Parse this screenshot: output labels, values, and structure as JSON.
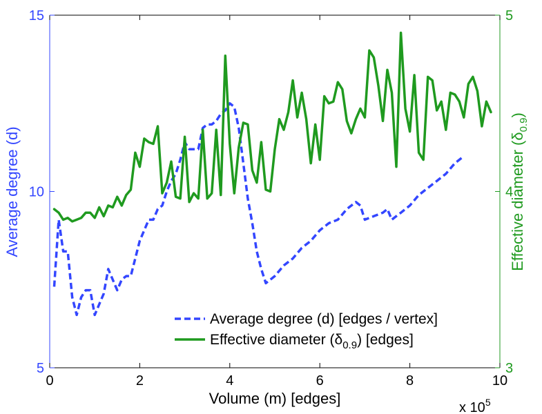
{
  "chart_data": {
    "type": "line",
    "xlabel": "Volume (m) [edges]",
    "x_multiplier_label": "x 10",
    "x_multiplier_exp": "5",
    "xlim": [
      0,
      10
    ],
    "x_ticks": [
      "0",
      "2",
      "4",
      "6",
      "8",
      "10"
    ],
    "y_left": {
      "label": "Average degree (d)",
      "lim": [
        5,
        15
      ],
      "ticks": [
        "5",
        "10",
        "15"
      ],
      "color": "#3346ff"
    },
    "y_right": {
      "label_main": "Effective diameter (δ",
      "label_sub": "0.9",
      "label_end": ")",
      "lim": [
        3,
        5
      ],
      "ticks": [
        "3",
        "4",
        "5"
      ],
      "color": "#1f9a1f"
    },
    "legend_position": "lower-right",
    "grid": false,
    "series": [
      {
        "name": "Average degree (d) [edges / vertex]",
        "axis": "left",
        "style": "dashed",
        "color": "#3346ff",
        "points": [
          [
            0.1,
            7.3
          ],
          [
            0.2,
            9.2
          ],
          [
            0.3,
            8.3
          ],
          [
            0.4,
            8.3
          ],
          [
            0.5,
            7.0
          ],
          [
            0.6,
            6.5
          ],
          [
            0.7,
            7.0
          ],
          [
            0.8,
            7.2
          ],
          [
            0.9,
            7.2
          ],
          [
            1.0,
            6.5
          ],
          [
            1.1,
            6.8
          ],
          [
            1.2,
            7.1
          ],
          [
            1.3,
            7.8
          ],
          [
            1.4,
            7.5
          ],
          [
            1.5,
            7.2
          ],
          [
            1.6,
            7.5
          ],
          [
            1.7,
            7.6
          ],
          [
            1.8,
            7.6
          ],
          [
            1.9,
            8.1
          ],
          [
            2.0,
            8.6
          ],
          [
            2.1,
            8.9
          ],
          [
            2.2,
            9.2
          ],
          [
            2.3,
            9.2
          ],
          [
            2.4,
            9.5
          ],
          [
            2.5,
            9.6
          ],
          [
            2.6,
            10.0
          ],
          [
            2.7,
            10.3
          ],
          [
            2.8,
            10.5
          ],
          [
            2.9,
            10.9
          ],
          [
            3.0,
            11.4
          ],
          [
            3.1,
            11.2
          ],
          [
            3.2,
            11.2
          ],
          [
            3.3,
            11.2
          ],
          [
            3.4,
            11.8
          ],
          [
            3.5,
            11.9
          ],
          [
            3.6,
            11.9
          ],
          [
            3.7,
            12.0
          ],
          [
            3.8,
            12.2
          ],
          [
            3.9,
            12.3
          ],
          [
            4.0,
            12.5
          ],
          [
            4.1,
            12.4
          ],
          [
            4.2,
            11.8
          ],
          [
            4.3,
            10.8
          ],
          [
            4.4,
            9.8
          ],
          [
            4.5,
            9.1
          ],
          [
            4.6,
            8.3
          ],
          [
            4.7,
            7.8
          ],
          [
            4.8,
            7.4
          ],
          [
            4.9,
            7.5
          ],
          [
            5.0,
            7.6
          ],
          [
            5.2,
            7.9
          ],
          [
            5.4,
            8.1
          ],
          [
            5.6,
            8.4
          ],
          [
            5.8,
            8.6
          ],
          [
            6.0,
            8.9
          ],
          [
            6.2,
            9.1
          ],
          [
            6.4,
            9.2
          ],
          [
            6.6,
            9.5
          ],
          [
            6.8,
            9.7
          ],
          [
            6.9,
            9.6
          ],
          [
            7.0,
            9.2
          ],
          [
            7.2,
            9.3
          ],
          [
            7.4,
            9.4
          ],
          [
            7.5,
            9.5
          ],
          [
            7.6,
            9.2
          ],
          [
            7.7,
            9.3
          ],
          [
            7.8,
            9.4
          ],
          [
            8.0,
            9.6
          ],
          [
            8.2,
            9.9
          ],
          [
            8.4,
            10.1
          ],
          [
            8.6,
            10.3
          ],
          [
            8.8,
            10.5
          ],
          [
            9.0,
            10.8
          ],
          [
            9.2,
            11.0
          ]
        ]
      },
      {
        "name_main": "Effective diameter (δ",
        "name_sub": "0.9",
        "name_end": ") [edges]",
        "axis": "right",
        "style": "solid",
        "color": "#1f9a1f",
        "points": [
          [
            0.1,
            3.9
          ],
          [
            0.2,
            3.88
          ],
          [
            0.3,
            3.84
          ],
          [
            0.4,
            3.85
          ],
          [
            0.5,
            3.83
          ],
          [
            0.6,
            3.84
          ],
          [
            0.7,
            3.85
          ],
          [
            0.8,
            3.88
          ],
          [
            0.9,
            3.88
          ],
          [
            1.0,
            3.85
          ],
          [
            1.1,
            3.91
          ],
          [
            1.2,
            3.86
          ],
          [
            1.3,
            3.92
          ],
          [
            1.4,
            3.91
          ],
          [
            1.5,
            3.97
          ],
          [
            1.6,
            3.92
          ],
          [
            1.7,
            3.98
          ],
          [
            1.8,
            4.01
          ],
          [
            1.9,
            4.22
          ],
          [
            2.0,
            4.14
          ],
          [
            2.1,
            4.3
          ],
          [
            2.2,
            4.28
          ],
          [
            2.3,
            4.27
          ],
          [
            2.4,
            4.37
          ],
          [
            2.5,
            3.99
          ],
          [
            2.6,
            4.05
          ],
          [
            2.7,
            4.17
          ],
          [
            2.8,
            3.97
          ],
          [
            2.9,
            3.96
          ],
          [
            3.0,
            4.31
          ],
          [
            3.1,
            3.94
          ],
          [
            3.2,
            3.99
          ],
          [
            3.3,
            3.96
          ],
          [
            3.4,
            4.35
          ],
          [
            3.5,
            3.96
          ],
          [
            3.6,
            3.99
          ],
          [
            3.7,
            4.35
          ],
          [
            3.8,
            3.98
          ],
          [
            3.9,
            4.77
          ],
          [
            4.0,
            4.27
          ],
          [
            4.1,
            3.99
          ],
          [
            4.2,
            4.25
          ],
          [
            4.3,
            4.39
          ],
          [
            4.4,
            4.38
          ],
          [
            4.5,
            4.12
          ],
          [
            4.6,
            4.05
          ],
          [
            4.7,
            4.28
          ],
          [
            4.8,
            4.01
          ],
          [
            4.9,
            4.0
          ],
          [
            5.0,
            4.24
          ],
          [
            5.1,
            4.41
          ],
          [
            5.2,
            4.35
          ],
          [
            5.3,
            4.45
          ],
          [
            5.4,
            4.63
          ],
          [
            5.5,
            4.42
          ],
          [
            5.6,
            4.56
          ],
          [
            5.7,
            4.41
          ],
          [
            5.8,
            4.16
          ],
          [
            5.9,
            4.38
          ],
          [
            6.0,
            4.18
          ],
          [
            6.1,
            4.54
          ],
          [
            6.2,
            4.5
          ],
          [
            6.3,
            4.51
          ],
          [
            6.4,
            4.62
          ],
          [
            6.5,
            4.58
          ],
          [
            6.6,
            4.4
          ],
          [
            6.7,
            4.33
          ],
          [
            6.8,
            4.41
          ],
          [
            6.9,
            4.47
          ],
          [
            7.0,
            4.42
          ],
          [
            7.1,
            4.8
          ],
          [
            7.2,
            4.76
          ],
          [
            7.3,
            4.6
          ],
          [
            7.4,
            4.4
          ],
          [
            7.5,
            4.69
          ],
          [
            7.6,
            4.56
          ],
          [
            7.7,
            4.14
          ],
          [
            7.8,
            4.9
          ],
          [
            7.9,
            4.47
          ],
          [
            8.0,
            4.34
          ],
          [
            8.1,
            4.66
          ],
          [
            8.2,
            4.22
          ],
          [
            8.3,
            4.18
          ],
          [
            8.4,
            4.65
          ],
          [
            8.5,
            4.63
          ],
          [
            8.6,
            4.46
          ],
          [
            8.7,
            4.51
          ],
          [
            8.8,
            4.35
          ],
          [
            8.9,
            4.56
          ],
          [
            9.0,
            4.55
          ],
          [
            9.1,
            4.51
          ],
          [
            9.2,
            4.42
          ],
          [
            9.3,
            4.61
          ],
          [
            9.4,
            4.65
          ],
          [
            9.5,
            4.57
          ],
          [
            9.6,
            4.37
          ],
          [
            9.7,
            4.51
          ],
          [
            9.8,
            4.45
          ]
        ]
      }
    ]
  }
}
